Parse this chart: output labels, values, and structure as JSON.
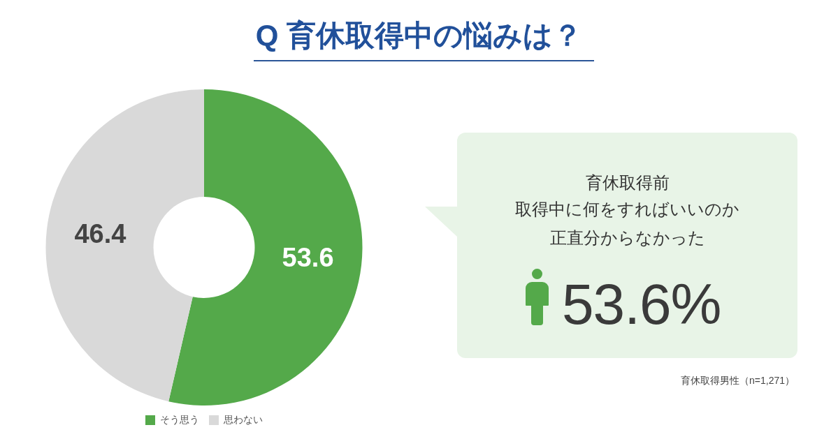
{
  "chart_data": {
    "type": "donut",
    "title": "Q 育休取得中の悩みは？",
    "categories": [
      "そう思う",
      "思わない"
    ],
    "values": [
      53.6,
      46.4
    ],
    "colors": [
      "#54a94a",
      "#d9d9d9"
    ],
    "data_labels": true,
    "legend": "bottom",
    "annotations": [
      "育休取得前",
      "取得中に何をすればいいのか",
      "正直分からなかった",
      "53.6%",
      "育休取得男性（n=1,271）"
    ]
  }
}
